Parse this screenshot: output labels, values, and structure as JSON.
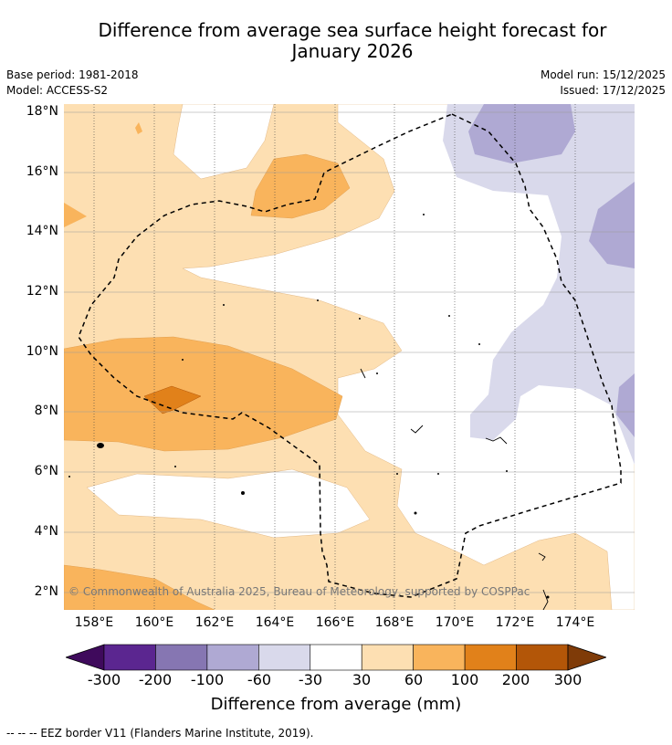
{
  "title_line1": "Difference from average sea surface height forecast for",
  "title_line2": "January 2026",
  "base_period": "Base period: 1981-2018",
  "model": "Model: ACCESS-S2",
  "model_run": "Model run: 15/12/2025",
  "issued": "Issued: 17/12/2025",
  "copyright": "© Commonwealth of Australia 2025, Bureau of Meteorology, supported by COSPPac",
  "legend_text": "--  --  -- EEZ border V11 (Flanders Marine Institute, 2019).",
  "chart_data": {
    "type": "map-contour",
    "lat_labels": [
      "18°N",
      "16°N",
      "14°N",
      "12°N",
      "10°N",
      "8°N",
      "6°N",
      "4°N",
      "2°N"
    ],
    "lon_labels": [
      "158°E",
      "160°E",
      "162°E",
      "164°E",
      "166°E",
      "168°E",
      "170°E",
      "172°E",
      "174°E"
    ],
    "lat_values": [
      18,
      16,
      14,
      12,
      10,
      8,
      6,
      4,
      2
    ],
    "lon_values": [
      158,
      160,
      162,
      164,
      166,
      168,
      170,
      172,
      174
    ],
    "colorbar": {
      "title": "Difference from average (mm)",
      "tick_labels": [
        "-300",
        "-200",
        "-100",
        "-60",
        "-30",
        "30",
        "60",
        "100",
        "200",
        "300"
      ],
      "colors": [
        "#3f0a5c",
        "#5b2690",
        "#8676b2",
        "#afa9d3",
        "#d9d9eb",
        "#ffffff",
        "#fddfb2",
        "#f9b45c",
        "#e1811a",
        "#b35608",
        "#7f3b08"
      ]
    }
  }
}
